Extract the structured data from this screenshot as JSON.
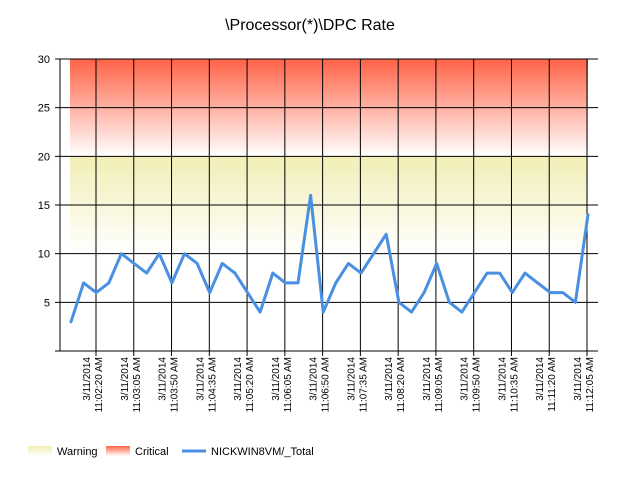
{
  "chart_data": {
    "type": "line",
    "title": "\\Processor(*)\\DPC Rate",
    "xlabel": "",
    "ylabel": "",
    "ylim": [
      0,
      30
    ],
    "yticks": [
      "5",
      "10",
      "15",
      "20",
      "25",
      "30"
    ],
    "grid": true,
    "legend_position": "bottom-left",
    "x_tick_labels": [
      [
        "3/11/2014",
        "11:02:20 AM"
      ],
      [
        "3/11/2014",
        "11:03:05 AM"
      ],
      [
        "3/11/2014",
        "11:03:50 AM"
      ],
      [
        "3/11/2014",
        "11:04:35 AM"
      ],
      [
        "3/11/2014",
        "11:05:20 AM"
      ],
      [
        "3/11/2014",
        "11:06:05 AM"
      ],
      [
        "3/11/2014",
        "11:06:50 AM"
      ],
      [
        "3/11/2014",
        "11:07:35 AM"
      ],
      [
        "3/11/2014",
        "11:08:20 AM"
      ],
      [
        "3/11/2014",
        "11:09:05 AM"
      ],
      [
        "3/11/2014",
        "11:09:50 AM"
      ],
      [
        "3/11/2014",
        "11:10:35 AM"
      ],
      [
        "3/11/2014",
        "11:11:20 AM"
      ],
      [
        "3/11/2014",
        "11:12:05 AM"
      ]
    ],
    "bands": [
      {
        "name": "Warning",
        "from": 10,
        "to": 20,
        "color_top": "#f1eeb5",
        "color_bottom": "#ffffff"
      },
      {
        "name": "Critical",
        "from": 20,
        "to": 30,
        "color_top": "#ff6347",
        "color_bottom": "#ffffff"
      }
    ],
    "series": [
      {
        "name": "NICKWIN8VM/_Total",
        "color": "#4a90e2",
        "values": [
          3,
          7,
          6,
          7,
          10,
          9,
          8,
          10,
          7,
          10,
          9,
          6,
          9,
          8,
          6,
          4,
          8,
          7,
          7,
          16,
          4,
          7,
          9,
          8,
          10,
          12,
          5,
          4,
          6,
          9,
          5,
          4,
          6,
          8,
          8,
          6,
          8,
          7,
          6,
          6,
          5,
          14
        ]
      }
    ]
  }
}
